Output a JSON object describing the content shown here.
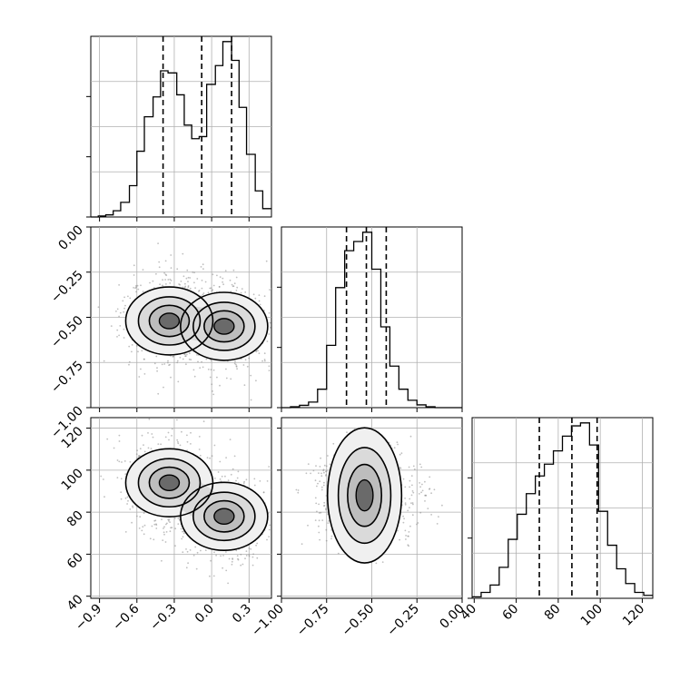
{
  "chart_data": {
    "type": "corner",
    "colors": {
      "ink": "#000000",
      "grid": "#b0b0b0",
      "scatter": "#8a8a8a"
    },
    "grid": true,
    "parameters": [
      {
        "index": 0,
        "range": [
          -0.97,
          0.48
        ],
        "ticks": [
          -0.9,
          -0.6,
          -0.3,
          0.0,
          0.3
        ],
        "tick_labels": [
          "−0.9",
          "−0.6",
          "−0.3",
          "0.0",
          "0.3"
        ],
        "quantiles": [
          -0.39,
          -0.08,
          0.16
        ]
      },
      {
        "index": 1,
        "range": [
          -1.0,
          0.0
        ],
        "ticks": [
          -1.0,
          -0.75,
          -0.5,
          -0.25,
          0.0
        ],
        "tick_labels": [
          "−1.00",
          "−0.75",
          "−0.50",
          "−0.25",
          "0.00"
        ],
        "quantiles": [
          -0.64,
          -0.53,
          -0.42
        ]
      },
      {
        "index": 2,
        "range": [
          39,
          125
        ],
        "ticks": [
          40,
          60,
          80,
          100,
          120
        ],
        "tick_labels": [
          "40",
          "60",
          "80",
          "100",
          "120"
        ],
        "quantiles": [
          71,
          86.5,
          98.5
        ]
      }
    ],
    "histograms": [
      {
        "param": 0,
        "bin_edges": [
          -0.97,
          -0.91,
          -0.85,
          -0.79,
          -0.73,
          -0.66,
          -0.6,
          -0.54,
          -0.47,
          -0.41,
          -0.35,
          -0.28,
          -0.22,
          -0.16,
          -0.1,
          -0.04,
          0.03,
          0.09,
          0.16,
          0.22,
          0.28,
          0.35,
          0.41,
          0.48
        ],
        "counts": [
          0,
          1,
          2,
          6,
          14,
          30,
          63,
          96,
          115,
          140,
          138,
          117,
          88,
          75,
          77,
          127,
          145,
          168,
          150,
          105,
          60,
          25,
          8
        ]
      },
      {
        "param": 1,
        "bin_edges": [
          -1.0,
          -0.95,
          -0.9,
          -0.85,
          -0.8,
          -0.75,
          -0.7,
          -0.65,
          -0.6,
          -0.55,
          -0.5,
          -0.45,
          -0.4,
          -0.35,
          -0.3,
          -0.25,
          -0.2,
          -0.15,
          -0.1,
          -0.05,
          0.0
        ],
        "counts": [
          0,
          2,
          5,
          12,
          40,
          135,
          260,
          340,
          360,
          380,
          300,
          175,
          90,
          40,
          16,
          6,
          2,
          0,
          0,
          0
        ]
      },
      {
        "param": 2,
        "bin_edges": [
          39,
          43.3,
          47.6,
          51.9,
          56.2,
          60.5,
          64.8,
          69.1,
          73.4,
          77.7,
          82,
          86.3,
          90.6,
          94.9,
          99.2,
          103.5,
          107.8,
          112.1,
          116.4,
          120.7,
          125
        ],
        "counts": [
          1,
          4,
          9,
          21,
          40,
          57,
          71,
          83,
          91,
          100,
          110,
          117,
          119,
          104,
          59,
          36,
          20,
          10,
          4,
          2
        ]
      }
    ],
    "pairs": [
      {
        "x_param": 0,
        "y_param": 1,
        "modes": [
          [
            -0.34,
            -0.52
          ],
          [
            0.1,
            -0.55
          ]
        ]
      },
      {
        "x_param": 0,
        "y_param": 2,
        "modes": [
          [
            -0.34,
            94
          ],
          [
            0.1,
            78
          ]
        ]
      },
      {
        "x_param": 1,
        "y_param": 2,
        "modes": [
          [
            -0.54,
            88
          ]
        ]
      }
    ]
  }
}
